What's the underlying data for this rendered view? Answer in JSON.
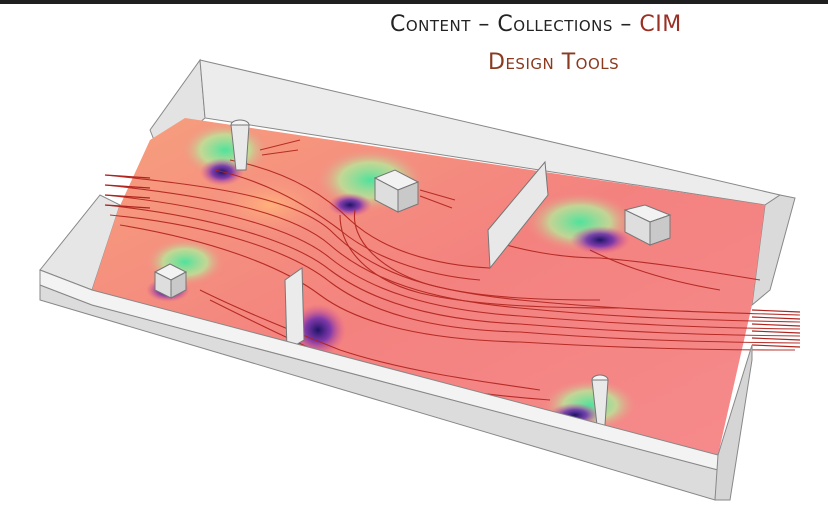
{
  "title": {
    "part1": "Content – Collections – ",
    "accent": "CIM",
    "accent_color": "#9a2f24"
  },
  "subtitle": "Design Tools",
  "colors": {
    "floor_base": "#f38c86",
    "green": "#58e6a2",
    "purple": "#2a1b7a",
    "wall": "#d9d9d9",
    "streamline": "#b0221c"
  }
}
